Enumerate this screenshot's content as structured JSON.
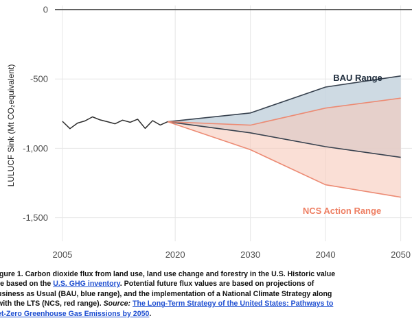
{
  "colors": {
    "bau_fill": "#c6d3de",
    "bau_line": "#37414e",
    "ncs_fill": "#f7c9bb",
    "ncs_line": "#ec8a73",
    "historic_line": "#2b2b2b",
    "zero_line": "#555555",
    "grid": "#e6e6e6",
    "label_bau": "#1f2d3d",
    "label_ncs": "#ee7f63",
    "link": "#1f4fd1"
  },
  "chart_data": {
    "type": "area",
    "ylabel": "LULUCF Sink (Mt CO₂equivalent)",
    "xlim": [
      2004,
      2051.5
    ],
    "ylim": [
      -1670,
      30
    ],
    "x_ticks": [
      2005,
      2020,
      2030,
      2040,
      2050
    ],
    "y_ticks": [
      0,
      -500,
      -1000,
      -1500
    ],
    "y_tick_labels": [
      "0",
      "-500",
      "-1,000",
      "-1,500"
    ],
    "grid": true,
    "zero_line": true,
    "series": [
      {
        "name": "",
        "type": "line",
        "x": [
          2005,
          2006,
          2007,
          2008,
          2009,
          2010,
          2011,
          2012,
          2013,
          2014,
          2015,
          2016,
          2017,
          2018,
          2019
        ],
        "y": [
          -805,
          -858,
          -818,
          -802,
          -773,
          -795,
          -808,
          -823,
          -797,
          -812,
          -790,
          -856,
          -800,
          -832,
          -808
        ]
      },
      {
        "name": "BAU Range",
        "type": "range",
        "x": [
          2019,
          2030,
          2040,
          2050
        ],
        "upper": [
          -808,
          -745,
          -558,
          -478
        ],
        "lower": [
          -808,
          -888,
          -988,
          -1065
        ]
      },
      {
        "name": "NCS Action Range",
        "type": "range",
        "x": [
          2019,
          2030,
          2040,
          2050
        ],
        "upper": [
          -808,
          -833,
          -710,
          -638
        ],
        "lower": [
          -808,
          -1010,
          -1263,
          -1352
        ]
      }
    ],
    "annotations": [
      "BAU Range",
      "NCS Action Range"
    ]
  },
  "caption": {
    "lines": [
      [
        {
          "text": "igure 1. Carbon dioxide flux from land use, land use change and forestry in the U.S. Historic value"
        }
      ],
      [
        {
          "text": "re based on the "
        },
        {
          "text": "U.S. GHG inventory",
          "link": true
        },
        {
          "text": ". Potential future flux values are based on projections of"
        }
      ],
      [
        {
          "text": "usiness as Usual (BAU, blue range), and the implementation of a National Climate Strategy along"
        }
      ],
      [
        {
          "text": "with the LTS (NCS, red range). "
        },
        {
          "text": "Source:",
          "italic": true
        },
        {
          "text": " "
        },
        {
          "text": "The Long-Term Strategy of the United States: Pathways to",
          "link": true
        }
      ],
      [
        {
          "text": "et-Zero Greenhouse Gas Emissions by 2050",
          "link": true
        },
        {
          "text": "."
        }
      ]
    ]
  }
}
